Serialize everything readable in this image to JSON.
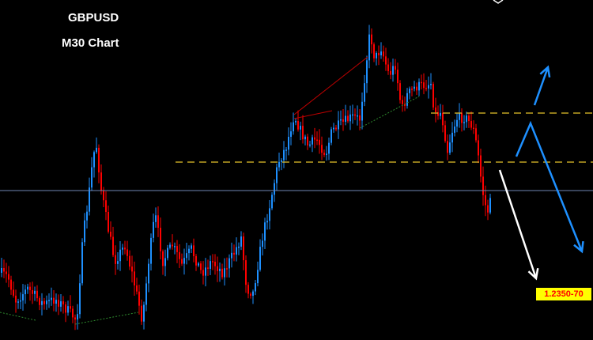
{
  "chart_data": {
    "type": "candlestick",
    "symbol": "GBPUSD",
    "timeframe_label": "M30 Chart",
    "target_label": "1.2350-70",
    "colors": {
      "background": "#000000",
      "bull_candle": "#1e90ff",
      "bear_candle": "#ff0000",
      "resistance_lines": "#e6c229",
      "current_price_line": "#6f86b5",
      "projection_bull": "#1e90ff",
      "projection_bear": "#ffffff",
      "trend_red": "#c00000",
      "trend_green": "#2e8b2e",
      "target_badge_bg": "#ffff00",
      "target_badge_text": "#ff0000"
    },
    "grid": false,
    "levels": {
      "resistance_upper": "dashed-yellow",
      "resistance_lower": "dashed-yellow",
      "current_price": "solid-blue"
    },
    "projection_arrows": [
      "up-blue",
      "zigzag-blue-down",
      "down-white"
    ]
  }
}
